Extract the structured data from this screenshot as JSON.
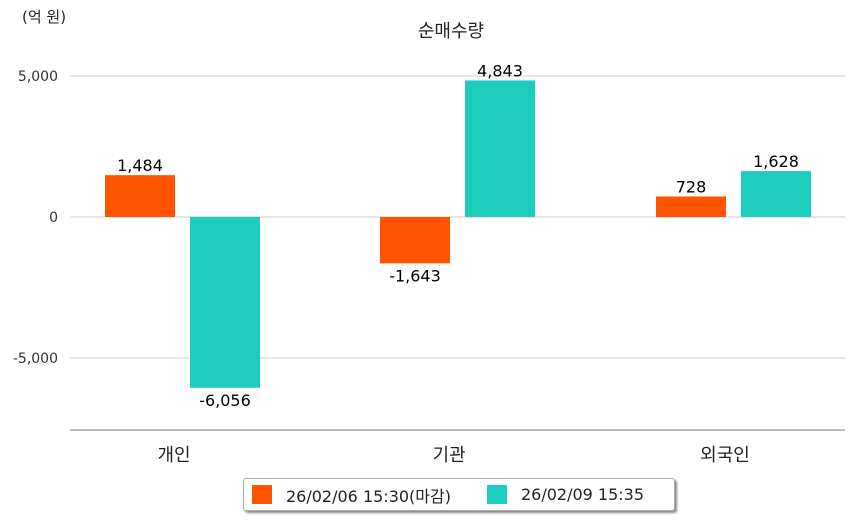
{
  "chart_data": {
    "type": "bar",
    "title": "순매수량",
    "unit_label": "(억 원)",
    "categories": [
      "개인",
      "기관",
      "외국인"
    ],
    "series": [
      {
        "name": "26/02/06 15:30(마감)",
        "color": "#ff5500",
        "values": [
          1484,
          -1643,
          728
        ],
        "labels": [
          "1,484",
          "-1,643",
          "728"
        ]
      },
      {
        "name": "26/02/09 15:35",
        "color": "#1ccdbd",
        "values": [
          -6056,
          4843,
          1628
        ],
        "labels": [
          "-6,056",
          "4,843",
          "1,628"
        ]
      }
    ],
    "yticks": [
      5000,
      0,
      -5000
    ],
    "ytick_labels": [
      "5,000",
      "0",
      "-5,000"
    ],
    "ylim": [
      -7550,
      5000
    ],
    "grid": true,
    "legend_position": "bottom"
  }
}
